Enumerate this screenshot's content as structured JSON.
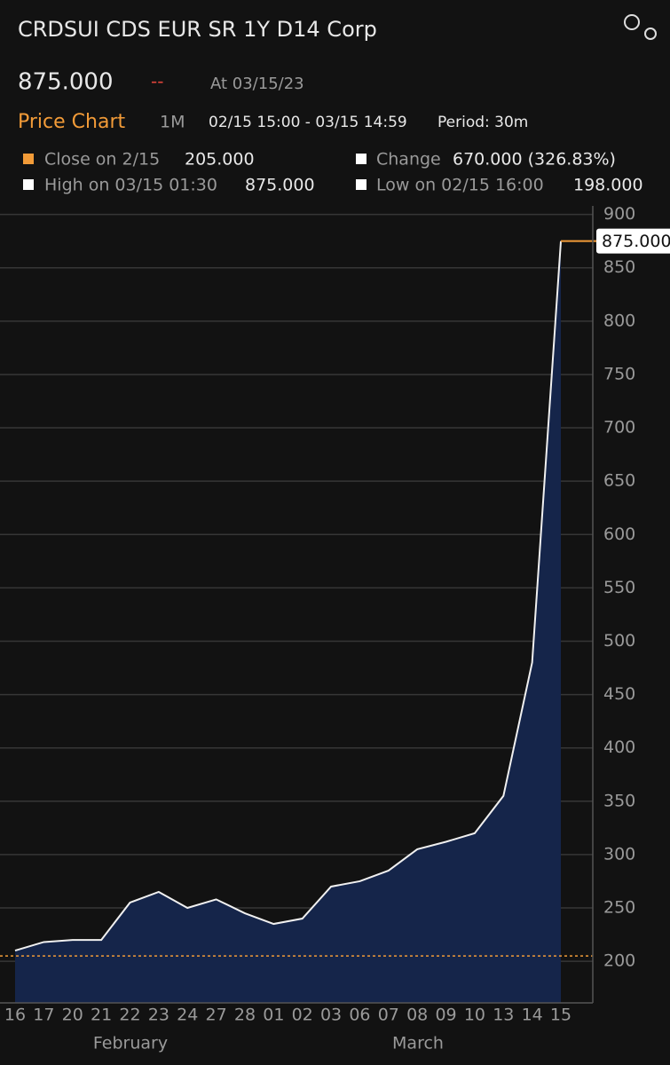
{
  "header": {
    "title": "CRDSUI CDS EUR SR 1Y D14 Corp",
    "price": "875.000",
    "change_indicator": "--",
    "as_of": "At 03/15/23",
    "section": "Price Chart",
    "range": "1M",
    "window": "02/15 15:00 - 03/15 14:59",
    "period": "Period: 30m",
    "stats": [
      {
        "label": "Close on 2/15",
        "value": "205.000"
      },
      {
        "label": "Change",
        "value": "670.000 (326.83%)"
      },
      {
        "label": "High on 03/15 01:30",
        "value": "875.000"
      },
      {
        "label": "Low on 02/15 16:00",
        "value": "198.000"
      }
    ]
  },
  "chart_data": {
    "type": "area",
    "categories": [
      "16",
      "17",
      "20",
      "21",
      "22",
      "23",
      "24",
      "27",
      "28",
      "01",
      "02",
      "03",
      "06",
      "07",
      "08",
      "09",
      "10",
      "13",
      "14",
      "15"
    ],
    "months": [
      "February",
      "March"
    ],
    "values": [
      210,
      218,
      220,
      220,
      255,
      265,
      250,
      258,
      245,
      235,
      240,
      270,
      275,
      285,
      305,
      312,
      320,
      355,
      480,
      875
    ],
    "last_label": "875.000",
    "close_line": 205,
    "line_color": "#f0f0f0",
    "fill_color": "#15254a",
    "accent_color": "#f29b38",
    "ylim": [
      161,
      908
    ],
    "yticks": [
      200,
      250,
      300,
      350,
      400,
      450,
      500,
      550,
      600,
      650,
      700,
      750,
      800,
      850,
      900
    ],
    "grid": true
  }
}
